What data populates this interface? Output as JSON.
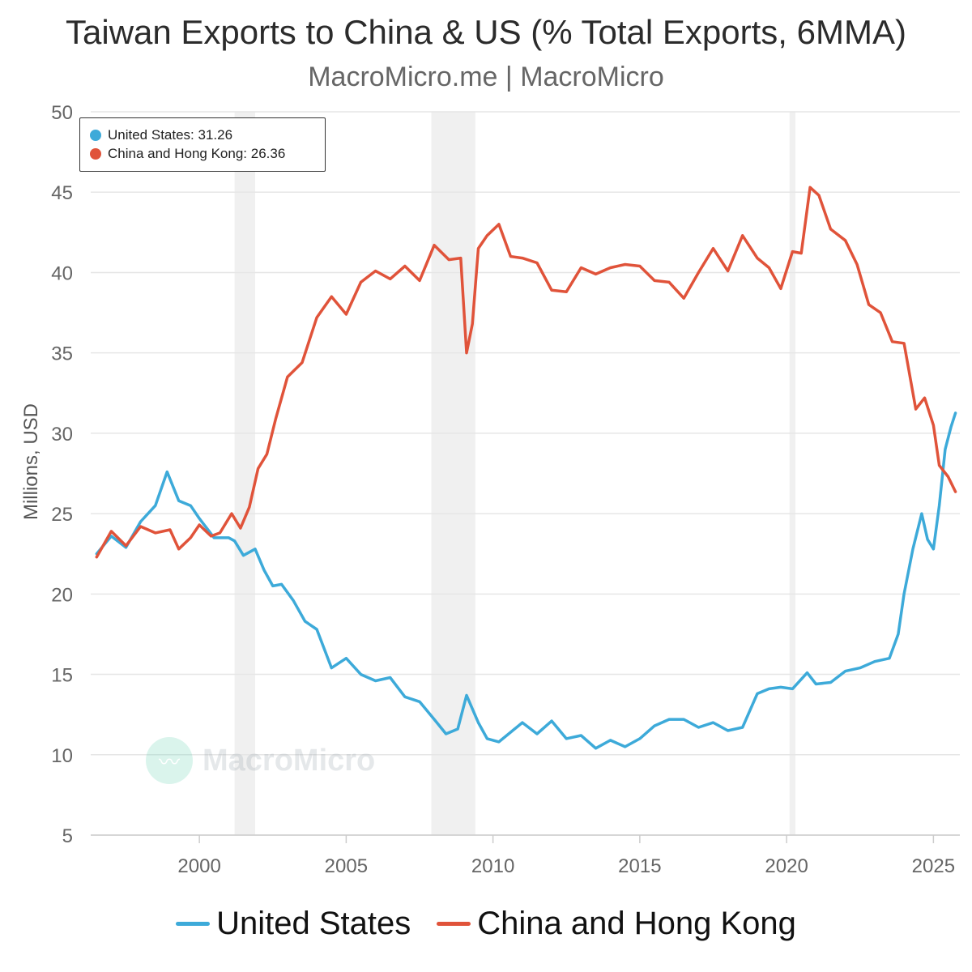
{
  "chart_data": {
    "type": "line",
    "title": "Taiwan Exports to China & US (% Total Exports, 6MMA)",
    "subtitle": "MacroMicro.me | MacroMicro",
    "ylabel": "Millions, USD",
    "xlabel": "",
    "ylim": [
      5,
      50
    ],
    "xlim": [
      1996.3,
      2025.9
    ],
    "y_ticks": [
      5,
      10,
      15,
      20,
      25,
      30,
      35,
      40,
      45,
      50
    ],
    "x_ticks": [
      2000,
      2005,
      2010,
      2015,
      2020,
      2025
    ],
    "grid": "horizontal",
    "recession_bands": [
      [
        2001.2,
        2001.9
      ],
      [
        2007.9,
        2009.4
      ],
      [
        2020.1,
        2020.3
      ]
    ],
    "watermark": "MacroMicro",
    "tooltip": {
      "us_label": "United States: 31.26",
      "china_label": "China and Hong Kong: 26.36"
    },
    "legend": {
      "us": "United States",
      "china": "China and Hong Kong"
    },
    "colors": {
      "us": "#3daad9",
      "china": "#e0533a",
      "band": "#f0f0f0",
      "grid": "#e6e6e6"
    },
    "series": [
      {
        "name": "United States",
        "x": [
          1996.5,
          1997,
          1997.5,
          1998,
          1998.5,
          1998.9,
          1999.3,
          1999.7,
          2000,
          2000.5,
          2001,
          2001.2,
          2001.5,
          2001.9,
          2002.2,
          2002.5,
          2002.8,
          2003.2,
          2003.6,
          2004,
          2004.5,
          2005,
          2005.5,
          2006,
          2006.5,
          2007,
          2007.5,
          2008,
          2008.4,
          2008.8,
          2009.1,
          2009.5,
          2009.8,
          2010.2,
          2010.6,
          2011,
          2011.5,
          2012,
          2012.5,
          2013,
          2013.5,
          2014,
          2014.5,
          2015,
          2015.5,
          2016,
          2016.5,
          2017,
          2017.5,
          2018,
          2018.5,
          2019,
          2019.4,
          2019.8,
          2020.2,
          2020.7,
          2021,
          2021.5,
          2022,
          2022.5,
          2023,
          2023.5,
          2023.8,
          2024,
          2024.3,
          2024.6,
          2024.8,
          2025,
          2025.2,
          2025.4,
          2025.6,
          2025.75
        ],
        "values": [
          22.5,
          23.6,
          22.9,
          24.5,
          25.5,
          27.6,
          25.8,
          25.5,
          24.7,
          23.5,
          23.5,
          23.3,
          22.4,
          22.8,
          21.5,
          20.5,
          20.6,
          19.6,
          18.3,
          17.8,
          15.4,
          16.0,
          15.0,
          14.6,
          14.8,
          13.6,
          13.3,
          12.2,
          11.3,
          11.6,
          13.7,
          12.0,
          11.0,
          10.8,
          11.4,
          12.0,
          11.3,
          12.1,
          11.0,
          11.2,
          10.4,
          10.9,
          10.5,
          11.0,
          11.8,
          12.2,
          12.2,
          11.7,
          12.0,
          11.5,
          11.7,
          13.8,
          14.1,
          14.2,
          14.1,
          15.1,
          14.4,
          14.5,
          15.2,
          15.4,
          15.8,
          16.0,
          17.5,
          20.0,
          22.8,
          25.0,
          23.4,
          22.8,
          25.5,
          29.0,
          30.4,
          31.26
        ]
      },
      {
        "name": "China and Hong Kong",
        "x": [
          1996.5,
          1997,
          1997.5,
          1998,
          1998.5,
          1999,
          1999.3,
          1999.7,
          2000,
          2000.4,
          2000.7,
          2001.1,
          2001.4,
          2001.7,
          2002,
          2002.3,
          2002.6,
          2003,
          2003.5,
          2004,
          2004.5,
          2005,
          2005.5,
          2006,
          2006.5,
          2007,
          2007.5,
          2008,
          2008.5,
          2008.9,
          2009.1,
          2009.3,
          2009.5,
          2009.8,
          2010.2,
          2010.6,
          2011,
          2011.5,
          2012,
          2012.5,
          2013,
          2013.5,
          2014,
          2014.5,
          2015,
          2015.5,
          2016,
          2016.5,
          2017,
          2017.5,
          2018,
          2018.5,
          2019,
          2019.4,
          2019.8,
          2020.2,
          2020.5,
          2020.8,
          2021.1,
          2021.5,
          2022,
          2022.4,
          2022.8,
          2023.2,
          2023.6,
          2024,
          2024.4,
          2024.7,
          2025,
          2025.2,
          2025.5,
          2025.75
        ],
        "values": [
          22.3,
          23.9,
          23.0,
          24.2,
          23.8,
          24.0,
          22.8,
          23.5,
          24.3,
          23.6,
          23.8,
          25.0,
          24.1,
          25.4,
          27.8,
          28.7,
          30.9,
          33.5,
          34.4,
          37.2,
          38.5,
          37.4,
          39.4,
          40.1,
          39.6,
          40.4,
          39.5,
          41.7,
          40.8,
          40.9,
          35.0,
          36.8,
          41.5,
          42.3,
          43.0,
          41.0,
          40.9,
          40.6,
          38.9,
          38.8,
          40.3,
          39.9,
          40.3,
          40.5,
          40.4,
          39.5,
          39.4,
          38.4,
          40.0,
          41.5,
          40.1,
          42.3,
          40.9,
          40.3,
          39.0,
          41.3,
          41.2,
          45.3,
          44.8,
          42.7,
          42.0,
          40.5,
          38.0,
          37.5,
          35.7,
          35.6,
          31.5,
          32.2,
          30.5,
          28.0,
          27.3,
          26.36
        ]
      }
    ]
  }
}
